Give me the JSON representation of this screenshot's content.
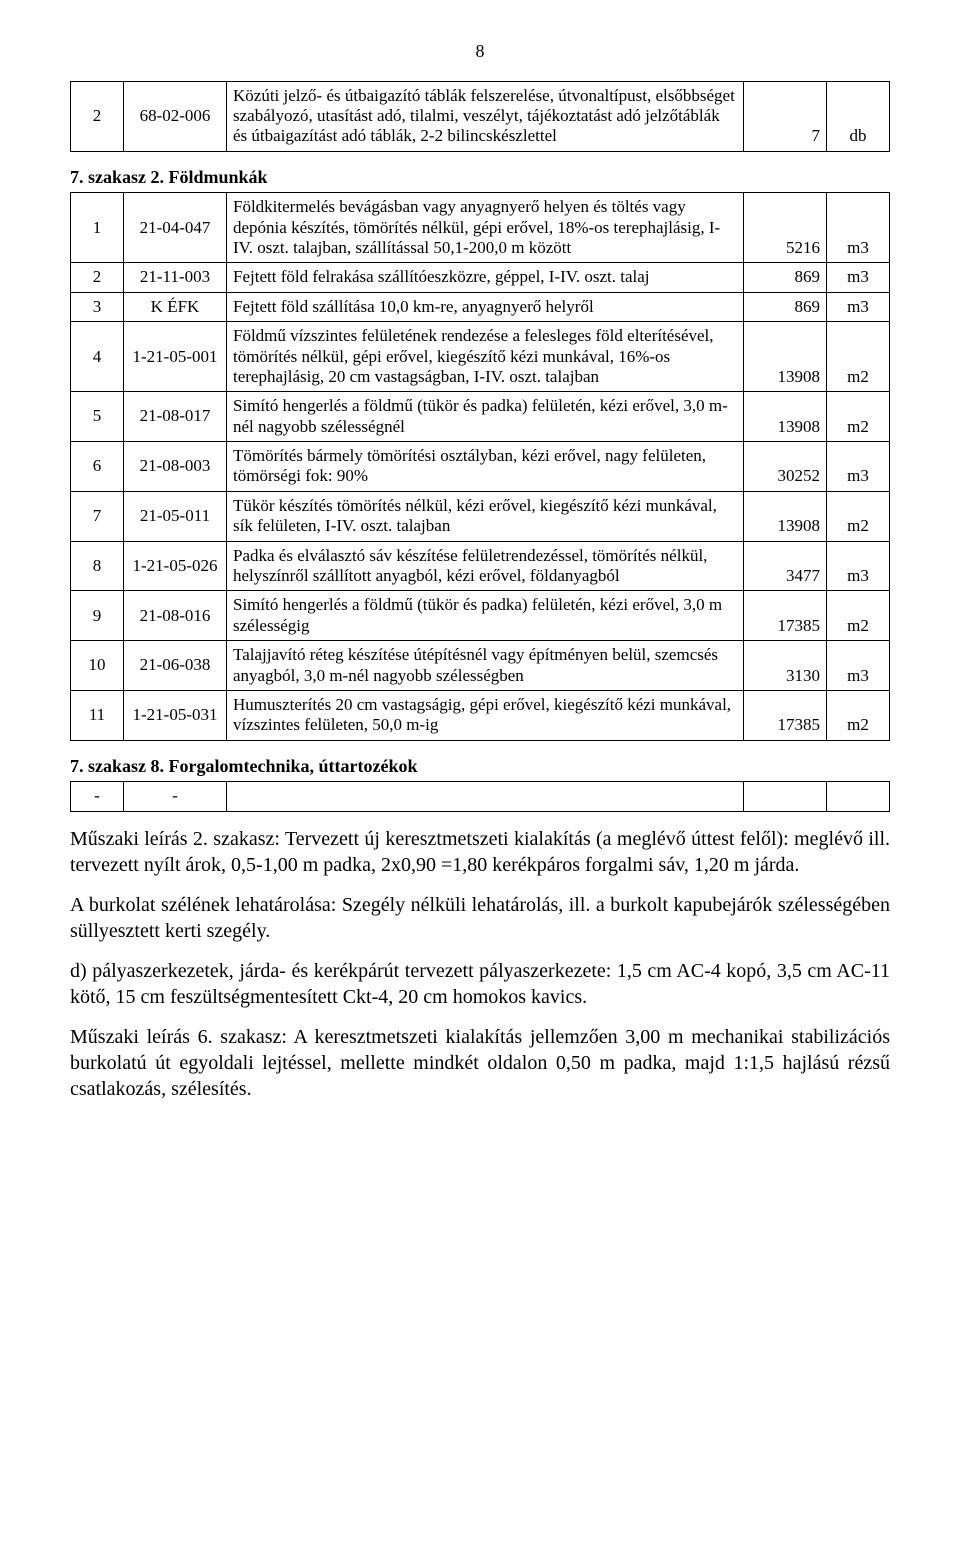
{
  "page_number": "8",
  "section_pre_title": "",
  "table_pre": {
    "rows": [
      {
        "num": "2",
        "code": "68-02-006",
        "desc": "Közúti jelző- és útbaigazító táblák felszerelése, útvonaltípust, elsőbbséget szabályozó, utasítást adó, tilalmi, veszélyt, tájékoztatást adó jelzőtáblák és útbaigazítást adó táblák, 2-2 bilincskészlettel",
        "qty": "7",
        "unit": "db"
      }
    ]
  },
  "sec7_title": "7. szakasz 2. Földmunkák",
  "table_sec7": {
    "rows": [
      {
        "num": "1",
        "code": "21-04-047",
        "desc": "Földkitermelés bevágásban vagy anyagnyerő helyen és töltés vagy depónia készítés, tömörítés nélkül, gépi erővel, 18%-os terephajlásig, I-IV. oszt. talajban, szállítással 50,1-200,0 m között",
        "qty": "5216",
        "unit": "m3"
      },
      {
        "num": "2",
        "code": "21-11-003",
        "desc": "Fejtett föld felrakása szállítóeszközre, géppel, I-IV. oszt. talaj",
        "qty": "869",
        "unit": "m3"
      },
      {
        "num": "3",
        "code": "K ÉFK",
        "desc": "Fejtett föld szállítása 10,0 km-re, anyagnyerő helyről",
        "qty": "869",
        "unit": "m3"
      },
      {
        "num": "4",
        "code": "1-21-05-001",
        "desc": "Földmű vízszintes felületének rendezése a felesleges föld elterítésével, tömörítés nélkül, gépi erővel, kiegészítő kézi munkával, 16%-os terephajlásig, 20 cm vastagságban, I-IV. oszt. talajban",
        "qty": "13908",
        "unit": "m2"
      },
      {
        "num": "5",
        "code": "21-08-017",
        "desc": "Simító hengerlés a földmű (tükör és padka) felületén, kézi erővel, 3,0 m-nél nagyobb szélességnél",
        "qty": "13908",
        "unit": "m2"
      },
      {
        "num": "6",
        "code": "21-08-003",
        "desc": "Tömörítés bármely tömörítési osztályban, kézi erővel, nagy felületen, tömörségi fok: 90%",
        "qty": "30252",
        "unit": "m3"
      },
      {
        "num": "7",
        "code": "21-05-011",
        "desc": "Tükör készítés tömörítés nélkül, kézi erővel, kiegészítő kézi munkával, sík felületen, I-IV. oszt. talajban",
        "qty": "13908",
        "unit": "m2"
      },
      {
        "num": "8",
        "code": "1-21-05-026",
        "desc": "Padka és elválasztó sáv készítése felületrendezéssel, tömörítés nélkül, helyszínről szállított anyagból, kézi erővel, földanyagból",
        "qty": "3477",
        "unit": "m3"
      },
      {
        "num": "9",
        "code": "21-08-016",
        "desc": "Simító hengerlés a földmű (tükör és padka) felületén, kézi erővel, 3,0 m szélességig",
        "qty": "17385",
        "unit": "m2"
      },
      {
        "num": "10",
        "code": "21-06-038",
        "desc": "Talajjavító réteg készítése útépítésnél vagy építményen belül, szemcsés anyagból, 3,0 m-nél nagyobb szélességben",
        "qty": "3130",
        "unit": "m3"
      },
      {
        "num": "11",
        "code": "1-21-05-031",
        "desc": "Humuszterítés 20 cm vastagságig, gépi erővel, kiegészítő kézi munkával, vízszintes felületen, 50,0 m-ig",
        "qty": "17385",
        "unit": "m2"
      }
    ]
  },
  "sec8_title": "7. szakasz 8. Forgalomtechnika, úttartozékok",
  "table_sec8": {
    "rows": [
      {
        "num": "-",
        "code": "-",
        "desc": "",
        "qty": "",
        "unit": ""
      }
    ]
  },
  "para1": "Műszaki leírás 2. szakasz: Tervezett új keresztmetszeti kialakítás (a meglévő úttest felől): meglévő ill. tervezett nyílt árok, 0,5-1,00 m padka, 2x0,90 =1,80 kerékpáros forgalmi sáv, 1,20 m járda.",
  "para2": "A burkolat szélének lehatárolása: Szegély nélküli lehatárolás, ill. a burkolt kapubejárók szélességében süllyesztett kerti szegély.",
  "para3": "d) pályaszerkezetek, járda- és kerékpárút tervezett pályaszerkezete: 1,5 cm AC-4 kopó, 3,5 cm AC-11 kötő, 15 cm feszültségmentesített Ckt-4, 20 cm homokos kavics.",
  "para4": "Műszaki leírás 6. szakasz: A keresztmetszeti kialakítás jellemzően 3,00 m mechanikai stabilizációs burkolatú út egyoldali lejtéssel, mellette mindkét oldalon 0,50 m padka, majd 1:1,5 hajlású rézsű csatlakozás, szélesítés.",
  "colors": {
    "text": "#000000",
    "background": "#ffffff",
    "border": "#000000"
  },
  "fonts": {
    "body_family": "Times New Roman",
    "table_size_pt": 12,
    "body_size_pt": 14
  }
}
